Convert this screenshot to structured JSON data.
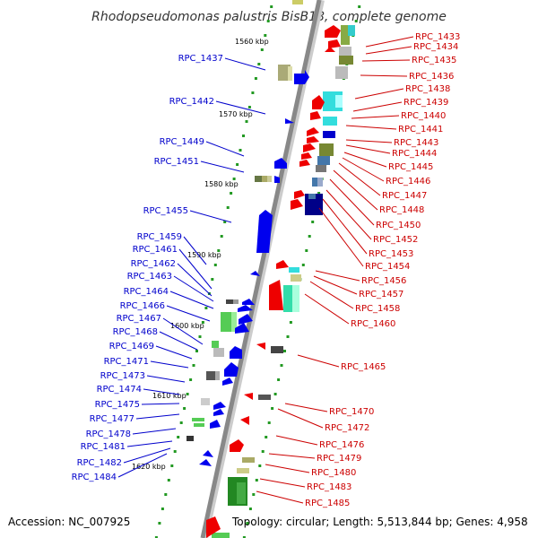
{
  "title": "Rhodopseudomonas palustris BisB18, complete genome",
  "footer": {
    "accession": "Accession: NC_007925",
    "summary": "Topology: circular; Length: 5,513,844 bp; Genes: 4,958"
  },
  "colors": {
    "forward_label": "#0000cc",
    "reverse_label": "#cc0000",
    "backbone": "#888888",
    "tick": "#229922"
  },
  "scale_labels": [
    "1560 kbp",
    "1570 kbp",
    "1580 kbp",
    "1590 kbp",
    "1600 kbp",
    "1610 kbp",
    "1620 kbp"
  ],
  "left_labels": [
    "RPC_1437",
    "RPC_1442",
    "RPC_1449",
    "RPC_1451",
    "RPC_1455",
    "RPC_1459",
    "RPC_1461",
    "RPC_1462",
    "RPC_1463",
    "RPC_1464",
    "RPC_1466",
    "RPC_1467",
    "RPC_1468",
    "RPC_1469",
    "RPC_1471",
    "RPC_1473",
    "RPC_1474",
    "RPC_1475",
    "RPC_1477",
    "RPC_1478",
    "RPC_1481",
    "RPC_1482",
    "RPC_1484"
  ],
  "right_labels": [
    "RPC_1433",
    "RPC_1434",
    "RPC_1435",
    "RPC_1436",
    "RPC_1438",
    "RPC_1439",
    "RPC_1440",
    "RPC_1441",
    "RPC_1443",
    "RPC_1444",
    "RPC_1445",
    "RPC_1446",
    "RPC_1447",
    "RPC_1448",
    "RPC_1450",
    "RPC_1452",
    "RPC_1453",
    "RPC_1454",
    "RPC_1456",
    "RPC_1457",
    "RPC_1458",
    "RPC_1460",
    "RPC_1465",
    "RPC_1470",
    "RPC_1472",
    "RPC_1476",
    "RPC_1479",
    "RPC_1480",
    "RPC_1483",
    "RPC_1485"
  ]
}
